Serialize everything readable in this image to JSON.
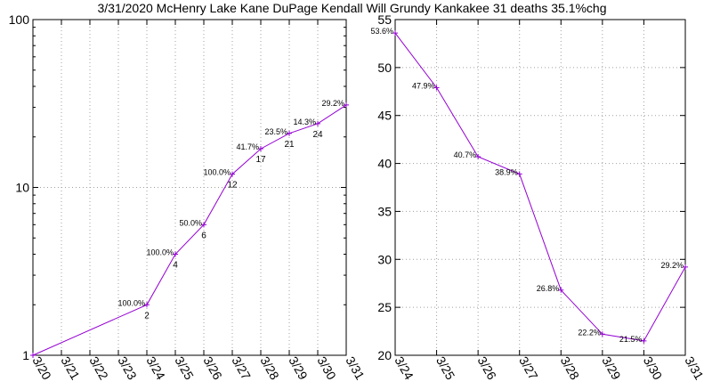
{
  "title": "3/31/2020 McHenry Lake Kane DuPage Kendall Will Grundy Kankakee 31 deaths 35.1%chg",
  "colors": {
    "series": "#9400d3",
    "grid": "#a0a0a0",
    "axis": "#000000"
  },
  "chart_data": [
    {
      "type": "line",
      "scale": "log",
      "ylim": [
        1,
        100
      ],
      "yticks": [
        "1",
        "10",
        "100"
      ],
      "grid": true,
      "categories": [
        "3/20",
        "3/21",
        "3/22",
        "3/23",
        "3/24",
        "3/25",
        "3/26",
        "3/27",
        "3/28",
        "3/29",
        "3/30",
        "3/31"
      ],
      "points": [
        {
          "x": "3/20",
          "y": 1
        },
        {
          "x": "3/24",
          "y": 2,
          "label": "2",
          "pct": "100.0%"
        },
        {
          "x": "3/25",
          "y": 4,
          "label": "4",
          "pct": "100.0%"
        },
        {
          "x": "3/26",
          "y": 6,
          "label": "6",
          "pct": "50.0%"
        },
        {
          "x": "3/27",
          "y": 12,
          "label": "12",
          "pct": "100.0%"
        },
        {
          "x": "3/28",
          "y": 17,
          "label": "17",
          "pct": "41.7%"
        },
        {
          "x": "3/29",
          "y": 21,
          "label": "21",
          "pct": "23.5%"
        },
        {
          "x": "3/30",
          "y": 24,
          "label": "24",
          "pct": "14.3%"
        },
        {
          "x": "3/31",
          "y": 31,
          "pct": "29.2%"
        }
      ]
    },
    {
      "type": "line",
      "scale": "linear",
      "ylim": [
        20,
        55
      ],
      "yticks": [
        "20",
        "25",
        "30",
        "35",
        "40",
        "45",
        "50",
        "55"
      ],
      "grid": true,
      "categories": [
        "3/24",
        "3/25",
        "3/26",
        "3/27",
        "3/28",
        "3/29",
        "3/30",
        "3/31"
      ],
      "points": [
        {
          "x": "3/24",
          "y": 53.6,
          "pct": "53.6%"
        },
        {
          "x": "3/25",
          "y": 47.9,
          "pct": "47.9%"
        },
        {
          "x": "3/26",
          "y": 40.7,
          "pct": "40.7%"
        },
        {
          "x": "3/27",
          "y": 38.9,
          "pct": "38.9%"
        },
        {
          "x": "3/28",
          "y": 26.8,
          "pct": "26.8%"
        },
        {
          "x": "3/29",
          "y": 22.2,
          "pct": "22.2%"
        },
        {
          "x": "3/30",
          "y": 21.5,
          "pct": "21.5%"
        },
        {
          "x": "3/31",
          "y": 29.2,
          "pct": "29.2%"
        }
      ]
    }
  ]
}
